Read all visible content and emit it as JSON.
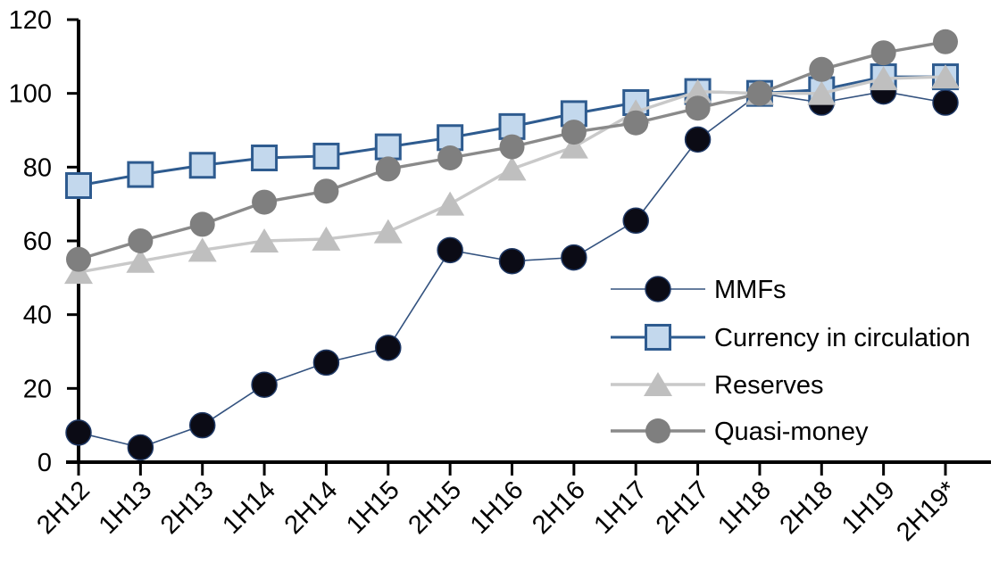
{
  "chart_data": {
    "type": "line",
    "title": "",
    "xlabel": "",
    "ylabel": "",
    "categories": [
      "2H12",
      "1H13",
      "2H13",
      "1H14",
      "2H14",
      "1H15",
      "2H15",
      "1H16",
      "2H16",
      "1H17",
      "2H17",
      "1H18",
      "2H18",
      "1H19",
      "2H19*"
    ],
    "series": [
      {
        "name": "MMFs",
        "marker": "circle",
        "marker_fill": "#0b0b15",
        "marker_stroke": "#1F3864",
        "line_color": "#33527F",
        "line_width": 1.6,
        "values": [
          8,
          4,
          10,
          21,
          27,
          31,
          57.5,
          54.5,
          55.5,
          65.5,
          87.5,
          100,
          97.5,
          100.5,
          97.5
        ]
      },
      {
        "name": "Currency in circulation",
        "marker": "square",
        "marker_fill": "#C3D8ED",
        "marker_stroke": "#2E5B8F",
        "line_color": "#2E5B8F",
        "line_width": 3,
        "values": [
          75,
          78,
          80.5,
          82.5,
          83,
          85.5,
          88,
          91,
          94.5,
          97.5,
          100.5,
          100,
          101,
          104.5,
          104.5
        ]
      },
      {
        "name": "Reserves",
        "marker": "triangle",
        "marker_fill": "#BFBFBF",
        "marker_stroke": "none",
        "line_color": "#C9C9C9",
        "line_width": 3.4,
        "values": [
          51.5,
          54.5,
          57.5,
          60,
          60.5,
          62.5,
          70,
          79.5,
          85.5,
          95,
          100.5,
          100,
          100,
          104,
          104.5
        ]
      },
      {
        "name": "Quasi-money",
        "marker": "circle",
        "marker_fill": "#7F7F7F",
        "marker_stroke": "none",
        "line_color": "#8A8A8A",
        "line_width": 3.4,
        "values": [
          55,
          60,
          64.5,
          70.5,
          73.5,
          79.5,
          82.5,
          85.5,
          89.5,
          92,
          96,
          100,
          106.5,
          111,
          114
        ]
      }
    ],
    "ylim": [
      0,
      120
    ],
    "yticks": [
      0,
      20,
      40,
      60,
      80,
      100,
      120
    ],
    "grid": false,
    "legend_position": "center-right",
    "legend_labels": [
      "MMFs",
      "Currency in circulation",
      "Reserves",
      "Quasi-money"
    ],
    "axis_color": "#000000"
  }
}
